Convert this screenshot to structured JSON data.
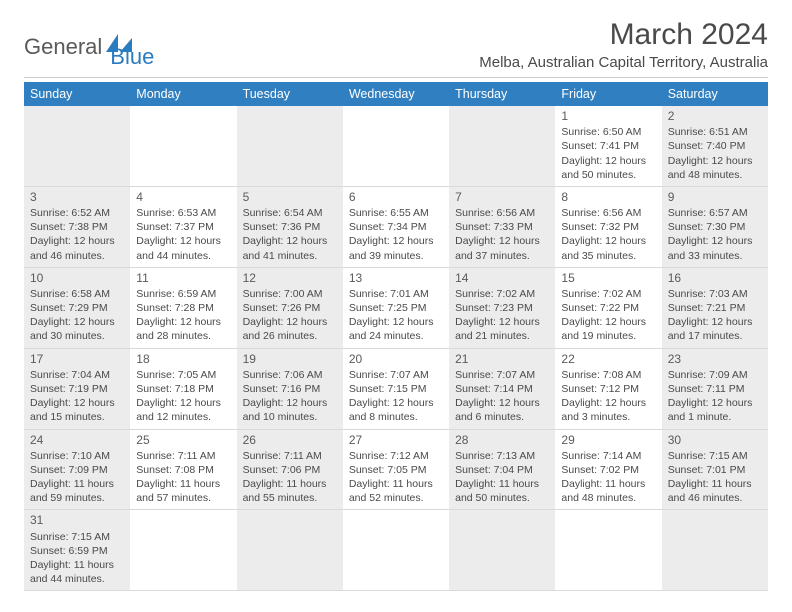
{
  "logo": {
    "part1": "General",
    "part2": "Blue"
  },
  "title": "March 2024",
  "location": "Melba, Australian Capital Territory, Australia",
  "colors": {
    "header_bg": "#2f7fc1",
    "header_text": "#ffffff",
    "shaded_bg": "#ececec",
    "text": "#4a4a4a",
    "border": "#d9d9d9",
    "logo_gray": "#5a5a5a",
    "logo_blue": "#2b7bbf"
  },
  "typography": {
    "month_title_size": 30,
    "location_size": 15,
    "day_header_size": 12.5,
    "daynum_size": 12,
    "cell_text_size": 10.5
  },
  "day_headers": [
    "Sunday",
    "Monday",
    "Tuesday",
    "Wednesday",
    "Thursday",
    "Friday",
    "Saturday"
  ],
  "weeks": [
    [
      {
        "shaded": true
      },
      {
        "shaded": false
      },
      {
        "shaded": true
      },
      {
        "shaded": false
      },
      {
        "shaded": true
      },
      {
        "shaded": false,
        "num": "1",
        "sunrise": "Sunrise: 6:50 AM",
        "sunset": "Sunset: 7:41 PM",
        "daylight": "Daylight: 12 hours and 50 minutes."
      },
      {
        "shaded": true,
        "num": "2",
        "sunrise": "Sunrise: 6:51 AM",
        "sunset": "Sunset: 7:40 PM",
        "daylight": "Daylight: 12 hours and 48 minutes."
      }
    ],
    [
      {
        "shaded": true,
        "num": "3",
        "sunrise": "Sunrise: 6:52 AM",
        "sunset": "Sunset: 7:38 PM",
        "daylight": "Daylight: 12 hours and 46 minutes."
      },
      {
        "shaded": false,
        "num": "4",
        "sunrise": "Sunrise: 6:53 AM",
        "sunset": "Sunset: 7:37 PM",
        "daylight": "Daylight: 12 hours and 44 minutes."
      },
      {
        "shaded": true,
        "num": "5",
        "sunrise": "Sunrise: 6:54 AM",
        "sunset": "Sunset: 7:36 PM",
        "daylight": "Daylight: 12 hours and 41 minutes."
      },
      {
        "shaded": false,
        "num": "6",
        "sunrise": "Sunrise: 6:55 AM",
        "sunset": "Sunset: 7:34 PM",
        "daylight": "Daylight: 12 hours and 39 minutes."
      },
      {
        "shaded": true,
        "num": "7",
        "sunrise": "Sunrise: 6:56 AM",
        "sunset": "Sunset: 7:33 PM",
        "daylight": "Daylight: 12 hours and 37 minutes."
      },
      {
        "shaded": false,
        "num": "8",
        "sunrise": "Sunrise: 6:56 AM",
        "sunset": "Sunset: 7:32 PM",
        "daylight": "Daylight: 12 hours and 35 minutes."
      },
      {
        "shaded": true,
        "num": "9",
        "sunrise": "Sunrise: 6:57 AM",
        "sunset": "Sunset: 7:30 PM",
        "daylight": "Daylight: 12 hours and 33 minutes."
      }
    ],
    [
      {
        "shaded": true,
        "num": "10",
        "sunrise": "Sunrise: 6:58 AM",
        "sunset": "Sunset: 7:29 PM",
        "daylight": "Daylight: 12 hours and 30 minutes."
      },
      {
        "shaded": false,
        "num": "11",
        "sunrise": "Sunrise: 6:59 AM",
        "sunset": "Sunset: 7:28 PM",
        "daylight": "Daylight: 12 hours and 28 minutes."
      },
      {
        "shaded": true,
        "num": "12",
        "sunrise": "Sunrise: 7:00 AM",
        "sunset": "Sunset: 7:26 PM",
        "daylight": "Daylight: 12 hours and 26 minutes."
      },
      {
        "shaded": false,
        "num": "13",
        "sunrise": "Sunrise: 7:01 AM",
        "sunset": "Sunset: 7:25 PM",
        "daylight": "Daylight: 12 hours and 24 minutes."
      },
      {
        "shaded": true,
        "num": "14",
        "sunrise": "Sunrise: 7:02 AM",
        "sunset": "Sunset: 7:23 PM",
        "daylight": "Daylight: 12 hours and 21 minutes."
      },
      {
        "shaded": false,
        "num": "15",
        "sunrise": "Sunrise: 7:02 AM",
        "sunset": "Sunset: 7:22 PM",
        "daylight": "Daylight: 12 hours and 19 minutes."
      },
      {
        "shaded": true,
        "num": "16",
        "sunrise": "Sunrise: 7:03 AM",
        "sunset": "Sunset: 7:21 PM",
        "daylight": "Daylight: 12 hours and 17 minutes."
      }
    ],
    [
      {
        "shaded": true,
        "num": "17",
        "sunrise": "Sunrise: 7:04 AM",
        "sunset": "Sunset: 7:19 PM",
        "daylight": "Daylight: 12 hours and 15 minutes."
      },
      {
        "shaded": false,
        "num": "18",
        "sunrise": "Sunrise: 7:05 AM",
        "sunset": "Sunset: 7:18 PM",
        "daylight": "Daylight: 12 hours and 12 minutes."
      },
      {
        "shaded": true,
        "num": "19",
        "sunrise": "Sunrise: 7:06 AM",
        "sunset": "Sunset: 7:16 PM",
        "daylight": "Daylight: 12 hours and 10 minutes."
      },
      {
        "shaded": false,
        "num": "20",
        "sunrise": "Sunrise: 7:07 AM",
        "sunset": "Sunset: 7:15 PM",
        "daylight": "Daylight: 12 hours and 8 minutes."
      },
      {
        "shaded": true,
        "num": "21",
        "sunrise": "Sunrise: 7:07 AM",
        "sunset": "Sunset: 7:14 PM",
        "daylight": "Daylight: 12 hours and 6 minutes."
      },
      {
        "shaded": false,
        "num": "22",
        "sunrise": "Sunrise: 7:08 AM",
        "sunset": "Sunset: 7:12 PM",
        "daylight": "Daylight: 12 hours and 3 minutes."
      },
      {
        "shaded": true,
        "num": "23",
        "sunrise": "Sunrise: 7:09 AM",
        "sunset": "Sunset: 7:11 PM",
        "daylight": "Daylight: 12 hours and 1 minute."
      }
    ],
    [
      {
        "shaded": true,
        "num": "24",
        "sunrise": "Sunrise: 7:10 AM",
        "sunset": "Sunset: 7:09 PM",
        "daylight": "Daylight: 11 hours and 59 minutes."
      },
      {
        "shaded": false,
        "num": "25",
        "sunrise": "Sunrise: 7:11 AM",
        "sunset": "Sunset: 7:08 PM",
        "daylight": "Daylight: 11 hours and 57 minutes."
      },
      {
        "shaded": true,
        "num": "26",
        "sunrise": "Sunrise: 7:11 AM",
        "sunset": "Sunset: 7:06 PM",
        "daylight": "Daylight: 11 hours and 55 minutes."
      },
      {
        "shaded": false,
        "num": "27",
        "sunrise": "Sunrise: 7:12 AM",
        "sunset": "Sunset: 7:05 PM",
        "daylight": "Daylight: 11 hours and 52 minutes."
      },
      {
        "shaded": true,
        "num": "28",
        "sunrise": "Sunrise: 7:13 AM",
        "sunset": "Sunset: 7:04 PM",
        "daylight": "Daylight: 11 hours and 50 minutes."
      },
      {
        "shaded": false,
        "num": "29",
        "sunrise": "Sunrise: 7:14 AM",
        "sunset": "Sunset: 7:02 PM",
        "daylight": "Daylight: 11 hours and 48 minutes."
      },
      {
        "shaded": true,
        "num": "30",
        "sunrise": "Sunrise: 7:15 AM",
        "sunset": "Sunset: 7:01 PM",
        "daylight": "Daylight: 11 hours and 46 minutes."
      }
    ],
    [
      {
        "shaded": true,
        "num": "31",
        "sunrise": "Sunrise: 7:15 AM",
        "sunset": "Sunset: 6:59 PM",
        "daylight": "Daylight: 11 hours and 44 minutes."
      },
      {
        "shaded": false
      },
      {
        "shaded": true
      },
      {
        "shaded": false
      },
      {
        "shaded": true
      },
      {
        "shaded": false
      },
      {
        "shaded": true
      }
    ]
  ]
}
